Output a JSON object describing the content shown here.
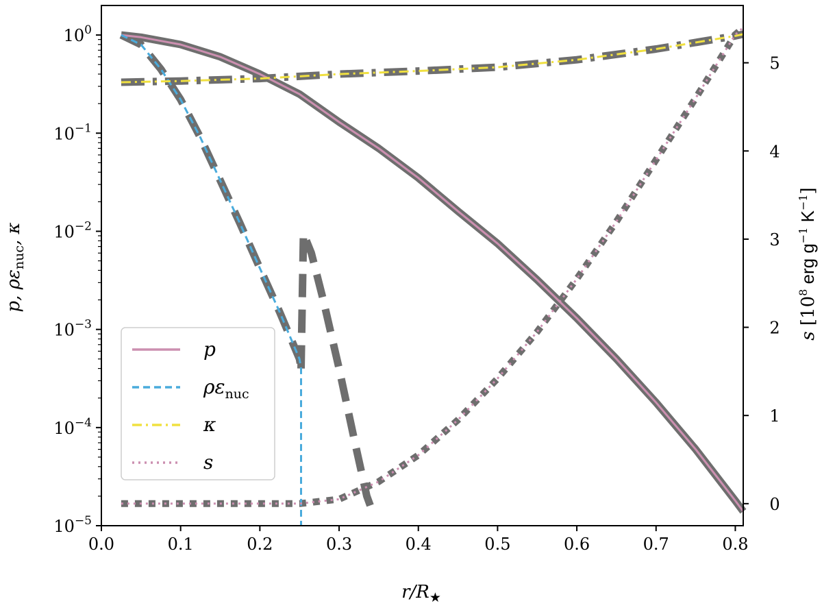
{
  "chart_data": {
    "type": "line",
    "xlabel": "r/R★",
    "ylabel_left": "p, ρε_nuc, κ",
    "ylabel_right": "s [10^8 erg g^-1 K^-1]",
    "xlim": [
      0.0,
      0.81
    ],
    "ylim_left": [
      1e-05,
      2.0
    ],
    "ylim_left_scale": "log",
    "ylim_right": [
      -0.25,
      5.65
    ],
    "x_ticks": [
      "0.0",
      "0.1",
      "0.2",
      "0.3",
      "0.4",
      "0.5",
      "0.6",
      "0.7",
      "0.8"
    ],
    "y_left_ticks": [
      {
        "base": "10",
        "exp": "0"
      },
      {
        "base": "10",
        "exp": "−1"
      },
      {
        "base": "10",
        "exp": "−2"
      },
      {
        "base": "10",
        "exp": "−3"
      },
      {
        "base": "10",
        "exp": "−4"
      },
      {
        "base": "10",
        "exp": "−5"
      }
    ],
    "y_right_ticks": [
      "0",
      "1",
      "2",
      "3",
      "4",
      "5"
    ],
    "legend_position": "lower-left",
    "legend": [
      {
        "label": "p",
        "sub": "",
        "color": "#cc8fb0",
        "dash": "solid"
      },
      {
        "label": "ρε",
        "sub": "nuc",
        "color": "#4aabdc",
        "dash": "dashed"
      },
      {
        "label": "κ",
        "sub": "",
        "color": "#f0e040",
        "dash": "dashdot"
      },
      {
        "label": "s",
        "sub": "",
        "color": "#cc8fb0",
        "dash": "dotted"
      }
    ],
    "series": [
      {
        "name": "p",
        "axis": "left",
        "color": "#cc8fb0",
        "dash": "solid",
        "x": [
          0.025,
          0.05,
          0.1,
          0.15,
          0.2,
          0.25,
          0.3,
          0.35,
          0.4,
          0.45,
          0.5,
          0.55,
          0.6,
          0.65,
          0.7,
          0.75,
          0.8,
          0.81
        ],
        "y": [
          1.0,
          0.95,
          0.8,
          0.6,
          0.4,
          0.25,
          0.13,
          0.07,
          0.035,
          0.016,
          0.0075,
          0.0032,
          0.0013,
          0.0005,
          0.00018,
          6e-05,
          1.8e-05,
          1.4e-05
        ]
      },
      {
        "name": "ρε_nuc",
        "axis": "left",
        "color": "#4aabdc",
        "dash": "dashed",
        "x": [
          0.025,
          0.05,
          0.075,
          0.1,
          0.125,
          0.15,
          0.175,
          0.2,
          0.225,
          0.25,
          0.252,
          0.252
        ],
        "y": [
          1.0,
          0.8,
          0.45,
          0.22,
          0.09,
          0.033,
          0.012,
          0.0042,
          0.0015,
          0.0005,
          0.0004,
          1e-05
        ]
      },
      {
        "name": "κ",
        "axis": "left",
        "color": "#f0e040",
        "dash": "dashdot",
        "x": [
          0.025,
          0.1,
          0.2,
          0.3,
          0.4,
          0.5,
          0.6,
          0.7,
          0.8,
          0.81
        ],
        "y": [
          0.33,
          0.34,
          0.36,
          0.4,
          0.43,
          0.47,
          0.56,
          0.72,
          0.98,
          1.02
        ]
      },
      {
        "name": "s",
        "axis": "right",
        "color": "#cc8fb0",
        "dash": "dotted",
        "x": [
          0.025,
          0.1,
          0.2,
          0.25,
          0.3,
          0.35,
          0.4,
          0.45,
          0.5,
          0.55,
          0.6,
          0.65,
          0.7,
          0.75,
          0.8,
          0.81
        ],
        "y": [
          0.0,
          0.0,
          0.0,
          0.0,
          0.05,
          0.25,
          0.55,
          0.95,
          1.42,
          1.95,
          2.55,
          3.2,
          3.9,
          4.6,
          5.32,
          5.4
        ]
      }
    ],
    "overlays": [
      {
        "axis": "left",
        "style": "solid",
        "x": [
          0.025,
          0.05,
          0.1,
          0.15,
          0.2,
          0.25,
          0.3,
          0.35,
          0.4,
          0.45,
          0.5,
          0.55,
          0.6,
          0.65,
          0.7,
          0.75,
          0.8,
          0.81
        ],
        "y": [
          1.0,
          0.95,
          0.8,
          0.6,
          0.4,
          0.25,
          0.13,
          0.07,
          0.035,
          0.016,
          0.0075,
          0.0032,
          0.0013,
          0.0005,
          0.00018,
          6e-05,
          1.8e-05,
          1.4e-05
        ]
      },
      {
        "axis": "left",
        "style": "dashed",
        "x": [
          0.025,
          0.05,
          0.075,
          0.1,
          0.125,
          0.15,
          0.175,
          0.2,
          0.225,
          0.25,
          0.252
        ],
        "y": [
          1.0,
          0.8,
          0.45,
          0.22,
          0.09,
          0.033,
          0.012,
          0.0042,
          0.0015,
          0.0005,
          0.0004
        ]
      },
      {
        "axis": "left",
        "style": "dashed",
        "x": [
          0.252,
          0.255,
          0.265,
          0.28,
          0.3,
          0.32,
          0.335,
          0.342
        ],
        "y": [
          0.0004,
          0.0095,
          0.006,
          0.002,
          0.0004,
          7e-05,
          2e-05,
          1.4e-05
        ]
      },
      {
        "axis": "left",
        "style": "dashdot",
        "x": [
          0.025,
          0.1,
          0.2,
          0.3,
          0.4,
          0.5,
          0.6,
          0.7,
          0.8,
          0.81
        ],
        "y": [
          0.33,
          0.34,
          0.36,
          0.4,
          0.43,
          0.47,
          0.56,
          0.72,
          0.98,
          1.02
        ]
      },
      {
        "axis": "right",
        "style": "dotted",
        "x": [
          0.025,
          0.1,
          0.2,
          0.25,
          0.3,
          0.35,
          0.4,
          0.45,
          0.5,
          0.55,
          0.6,
          0.65,
          0.7,
          0.75,
          0.8,
          0.81
        ],
        "y": [
          0.0,
          0.0,
          0.0,
          0.0,
          0.05,
          0.25,
          0.55,
          0.95,
          1.42,
          1.95,
          2.55,
          3.2,
          3.9,
          4.6,
          5.32,
          5.4
        ]
      }
    ]
  }
}
